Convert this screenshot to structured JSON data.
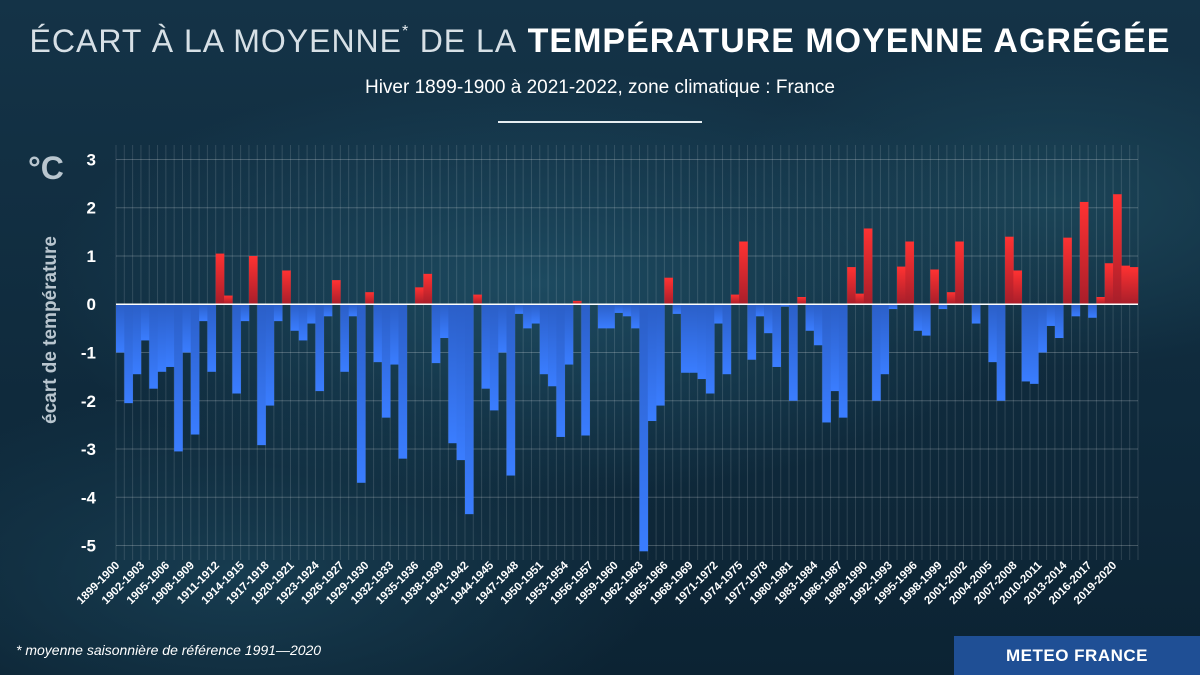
{
  "chart_data": {
    "type": "bar",
    "title_light": "ÉCART À LA MOYENNE",
    "title_mark": "*",
    "title_mid": "DE LA",
    "title_bold": "TEMPÉRATURE MOYENNE AGRÉGÉE",
    "subtitle": "Hiver 1899-1900 à 2021-2022, zone climatique : France",
    "unit": "°C",
    "ylabel": "écart de température",
    "ylim": [
      -5.3,
      3.3
    ],
    "yticks": [
      3,
      2,
      1,
      0,
      -1,
      -2,
      -3,
      -4,
      -5
    ],
    "grid": true,
    "colors": {
      "positive": "#e02a2a",
      "negative": "#2e6ff0"
    },
    "first_winter": 1899,
    "tick_every": 3,
    "categories": [
      "1899-1900",
      "1900-1901",
      "1901-1902",
      "1902-1903",
      "1903-1904",
      "1904-1905",
      "1905-1906",
      "1906-1907",
      "1907-1908",
      "1908-1909",
      "1909-1910",
      "1910-1911",
      "1911-1912",
      "1912-1913",
      "1913-1914",
      "1914-1915",
      "1915-1916",
      "1916-1917",
      "1917-1918",
      "1918-1919",
      "1919-1920",
      "1920-1921",
      "1921-1922",
      "1922-1923",
      "1923-1924",
      "1924-1925",
      "1925-1926",
      "1926-1927",
      "1927-1928",
      "1928-1929",
      "1929-1930",
      "1930-1931",
      "1931-1932",
      "1932-1933",
      "1933-1934",
      "1934-1935",
      "1935-1936",
      "1936-1937",
      "1937-1938",
      "1938-1939",
      "1939-1940",
      "1940-1941",
      "1941-1942",
      "1942-1943",
      "1943-1944",
      "1944-1945",
      "1945-1946",
      "1946-1947",
      "1947-1948",
      "1948-1949",
      "1949-1950",
      "1950-1951",
      "1951-1952",
      "1952-1953",
      "1953-1954",
      "1954-1955",
      "1955-1956",
      "1956-1957",
      "1957-1958",
      "1958-1959",
      "1959-1960",
      "1960-1961",
      "1961-1962",
      "1962-1963",
      "1963-1964",
      "1964-1965",
      "1965-1966",
      "1966-1967",
      "1967-1968",
      "1968-1969",
      "1969-1970",
      "1970-1971",
      "1971-1972",
      "1972-1973",
      "1973-1974",
      "1974-1975",
      "1975-1976",
      "1976-1977",
      "1977-1978",
      "1978-1979",
      "1979-1980",
      "1980-1981",
      "1981-1982",
      "1982-1983",
      "1983-1984",
      "1984-1985",
      "1985-1986",
      "1986-1987",
      "1987-1988",
      "1988-1989",
      "1989-1990",
      "1990-1991",
      "1991-1992",
      "1992-1993",
      "1993-1994",
      "1994-1995",
      "1995-1996",
      "1996-1997",
      "1997-1998",
      "1998-1999",
      "1999-2000",
      "2000-2001",
      "2001-2002",
      "2002-2003",
      "2003-2004",
      "2004-2005",
      "2005-2006",
      "2006-2007",
      "2007-2008",
      "2008-2009",
      "2009-2010",
      "2010-2011",
      "2011-2012",
      "2012-2013",
      "2013-2014",
      "2014-2015",
      "2015-2016",
      "2016-2017",
      "2017-2018",
      "2018-2019",
      "2019-2020",
      "2020-2021",
      "2021-2022"
    ],
    "values": [
      -1.0,
      -2.05,
      -1.45,
      -0.75,
      -1.75,
      -1.4,
      -1.3,
      -3.05,
      -1.0,
      -2.7,
      -0.35,
      -1.4,
      1.05,
      0.18,
      -1.85,
      -0.35,
      1.0,
      -2.92,
      -2.1,
      -0.35,
      0.7,
      -0.55,
      -0.75,
      -0.4,
      -1.8,
      -0.25,
      0.5,
      -1.4,
      -0.25,
      -3.7,
      0.25,
      -1.2,
      -2.35,
      -1.25,
      -3.2,
      0.0,
      0.35,
      0.63,
      -1.22,
      -0.7,
      -2.88,
      -3.23,
      -4.35,
      0.2,
      -1.75,
      -2.2,
      -1.0,
      -3.55,
      -0.2,
      -0.5,
      -0.4,
      -1.45,
      -1.7,
      -2.75,
      -1.25,
      0.07,
      -2.72,
      0.0,
      -0.5,
      -0.5,
      -0.18,
      -0.25,
      -0.5,
      -5.12,
      -2.42,
      -2.1,
      0.55,
      -0.2,
      -1.42,
      -1.42,
      -1.55,
      -1.85,
      -0.4,
      -1.45,
      0.2,
      1.3,
      -1.15,
      -0.25,
      -0.6,
      -1.3,
      -0.05,
      -2.0,
      0.15,
      -0.55,
      -0.85,
      -2.45,
      -1.8,
      -2.35,
      0.77,
      0.22,
      1.57,
      -2.0,
      -1.45,
      -0.1,
      0.78,
      1.3,
      -0.55,
      -0.65,
      0.72,
      -0.1,
      0.25,
      1.3,
      0.0,
      -0.4,
      0.0,
      -1.2,
      -2.0,
      1.4,
      0.7,
      -1.6,
      -1.65,
      -1.0,
      -0.45,
      -0.7,
      1.38,
      -0.25,
      2.12,
      -0.28,
      0.15,
      0.85,
      2.28,
      0.8,
      0.77
    ]
  },
  "footnote": "* moyenne saisonnière de référence 1991—2020",
  "logo": "METEO FRANCE"
}
